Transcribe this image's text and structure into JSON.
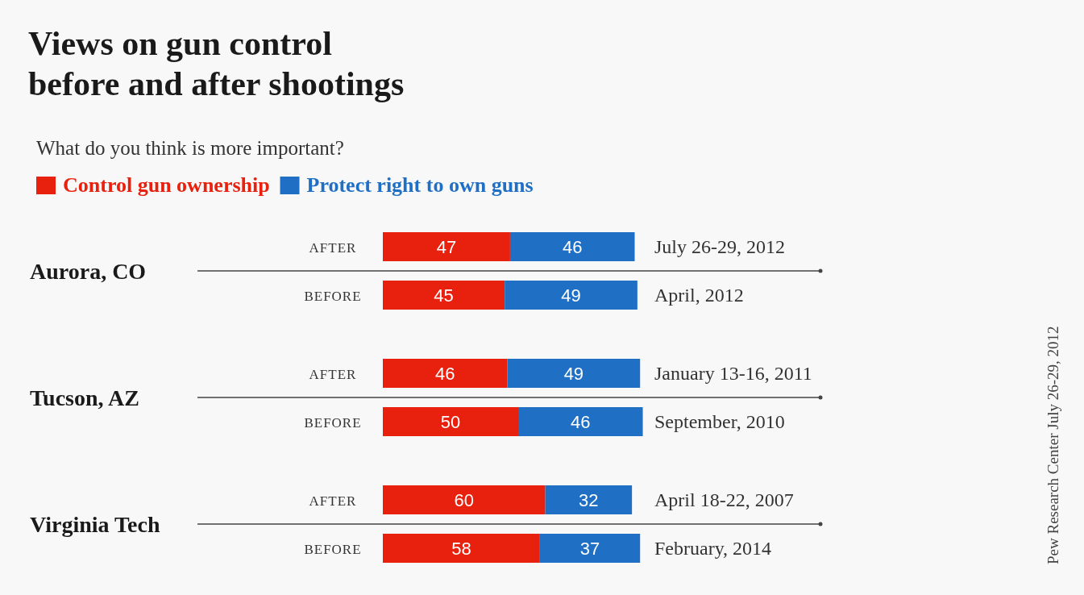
{
  "chart_data": {
    "type": "bar",
    "orientation": "horizontal",
    "stacked": true,
    "title": "Views on gun control\nbefore and after shootings",
    "subtitle": "What do you think is more important?",
    "categories": [
      "AFTER",
      "BEFORE",
      "AFTER",
      "BEFORE",
      "AFTER",
      "BEFORE"
    ],
    "series": [
      {
        "name": "Control gun ownership",
        "color": "#e8200e",
        "values": [
          47,
          45,
          46,
          50,
          60,
          58
        ]
      },
      {
        "name": "Protect right to own guns",
        "color": "#1f6fc5",
        "values": [
          46,
          49,
          49,
          46,
          32,
          37
        ]
      }
    ],
    "data_labels": true,
    "legend": "top left",
    "annotations": [
      "Aurora, CO",
      "Tucson, AZ",
      "Virginia Tech",
      "July 26-29, 2012",
      "April, 2012",
      "January 13-16, 2011",
      "September, 2010",
      "April 18-22, 2007",
      "February, 2014",
      "Pew Research Center July 26-29, 2012"
    ]
  }
}
